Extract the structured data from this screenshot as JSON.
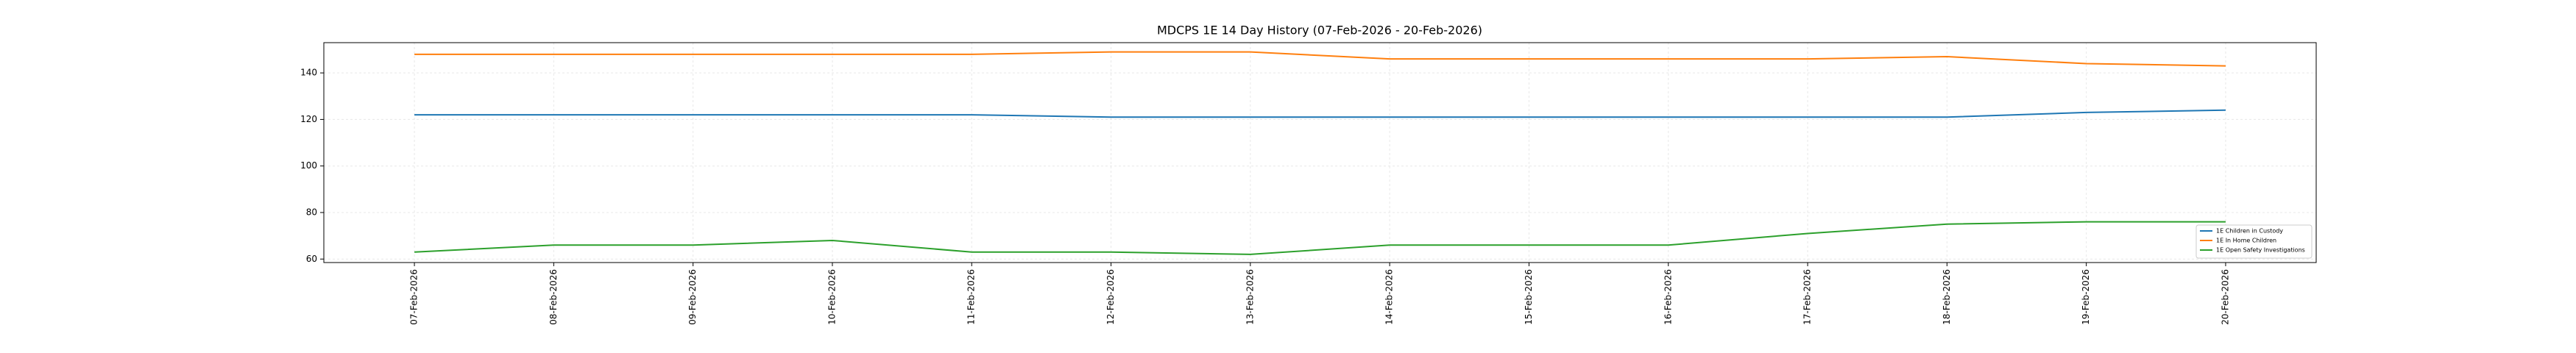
{
  "chart_data": {
    "type": "line",
    "title": "MDCPS 1E 14 Day History (07-Feb-2026 - 20-Feb-2026)",
    "categories": [
      "07-Feb-2026",
      "08-Feb-2026",
      "09-Feb-2026",
      "10-Feb-2026",
      "11-Feb-2026",
      "12-Feb-2026",
      "13-Feb-2026",
      "14-Feb-2026",
      "15-Feb-2026",
      "16-Feb-2026",
      "17-Feb-2026",
      "18-Feb-2026",
      "19-Feb-2026",
      "20-Feb-2026"
    ],
    "series": [
      {
        "name": "1E Children in Custody",
        "color": "#1f77b4",
        "values": [
          122,
          122,
          122,
          122,
          122,
          121,
          121,
          121,
          121,
          121,
          121,
          121,
          123,
          124
        ]
      },
      {
        "name": "1E In Home Children",
        "color": "#ff7f0e",
        "values": [
          148,
          148,
          148,
          148,
          148,
          149,
          149,
          146,
          146,
          146,
          146,
          147,
          144,
          143
        ]
      },
      {
        "name": "1E Open Safety Investigations",
        "color": "#2ca02c",
        "values": [
          63,
          66,
          66,
          68,
          63,
          63,
          62,
          66,
          66,
          66,
          71,
          75,
          76,
          76
        ]
      }
    ],
    "ylim": [
      58.5,
      153
    ],
    "yticks": [
      60,
      80,
      100,
      120,
      140
    ],
    "grid": true,
    "legend": "lower right"
  }
}
